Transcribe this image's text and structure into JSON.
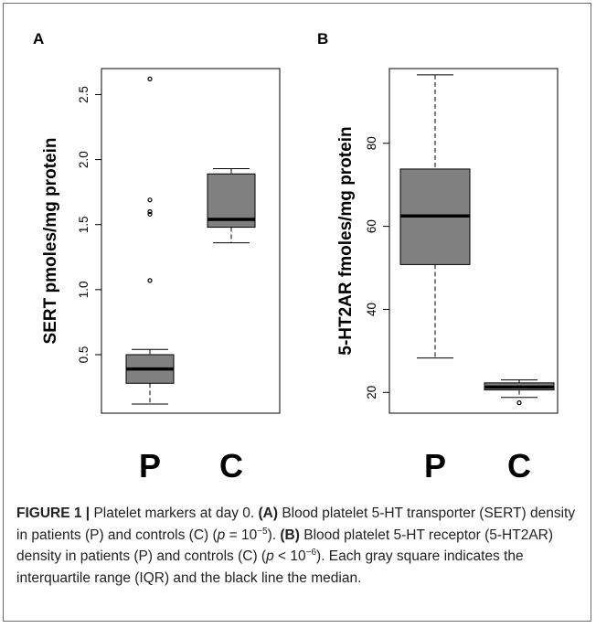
{
  "chart_data": [
    {
      "type": "box",
      "panel": "A",
      "ylabel": "SERT  pmoles/mg protein",
      "ylim": [
        0.05,
        2.7
      ],
      "yticks": [
        "0.5",
        "1.0",
        "1.5",
        "2.0",
        "2.5"
      ],
      "ytick_values": [
        0.5,
        1.0,
        1.5,
        2.0,
        2.5
      ],
      "categories": [
        "P",
        "C"
      ],
      "boxes": [
        {
          "name": "P",
          "whisker_low": 0.12,
          "q1": 0.28,
          "median": 0.39,
          "q3": 0.5,
          "whisker_high": 0.54,
          "outliers": [
            1.07,
            1.58,
            1.6,
            1.69,
            2.62
          ]
        },
        {
          "name": "C",
          "whisker_low": 1.36,
          "q1": 1.48,
          "median": 1.54,
          "q3": 1.89,
          "whisker_high": 1.93,
          "outliers": []
        }
      ],
      "box_fill": "#808080",
      "grid": false
    },
    {
      "type": "box",
      "panel": "B",
      "ylabel": "5-HT2AR  fmoles/mg protein",
      "ylim": [
        15,
        98
      ],
      "yticks": [
        "20",
        "40",
        "60",
        "80"
      ],
      "ytick_values": [
        20,
        40,
        60,
        80
      ],
      "categories": [
        "P",
        "C"
      ],
      "boxes": [
        {
          "name": "P",
          "whisker_low": 28.3,
          "q1": 50.8,
          "median": 62.5,
          "q3": 73.8,
          "whisker_high": 96.5,
          "outliers": []
        },
        {
          "name": "C",
          "whisker_low": 18.8,
          "q1": 20.6,
          "median": 21.3,
          "q3": 22.3,
          "whisker_high": 23.0,
          "outliers": [
            17.5
          ]
        }
      ],
      "box_fill": "#808080",
      "grid": false
    }
  ],
  "caption": {
    "figure_label": "FIGURE 1 |",
    "title": " Platelet markers at day 0. ",
    "a_label": "(A)",
    "a_text_1": " Blood platelet 5-HT transporter (SERT) density in patients (P) and controls (C) (",
    "p_sym": "p",
    "a_eq": " = 10",
    "a_exp": "−5",
    "a_text_2": "). ",
    "b_label": "(B)",
    "b_text_1": " Blood platelet 5-HT receptor (5-HT2AR) density in patients (P) and controls (C) (",
    "b_lt": " < 10",
    "b_exp": "−6",
    "b_text_2": "). Each gray square indicates the interquartile range (IQR) and the black line the median."
  }
}
